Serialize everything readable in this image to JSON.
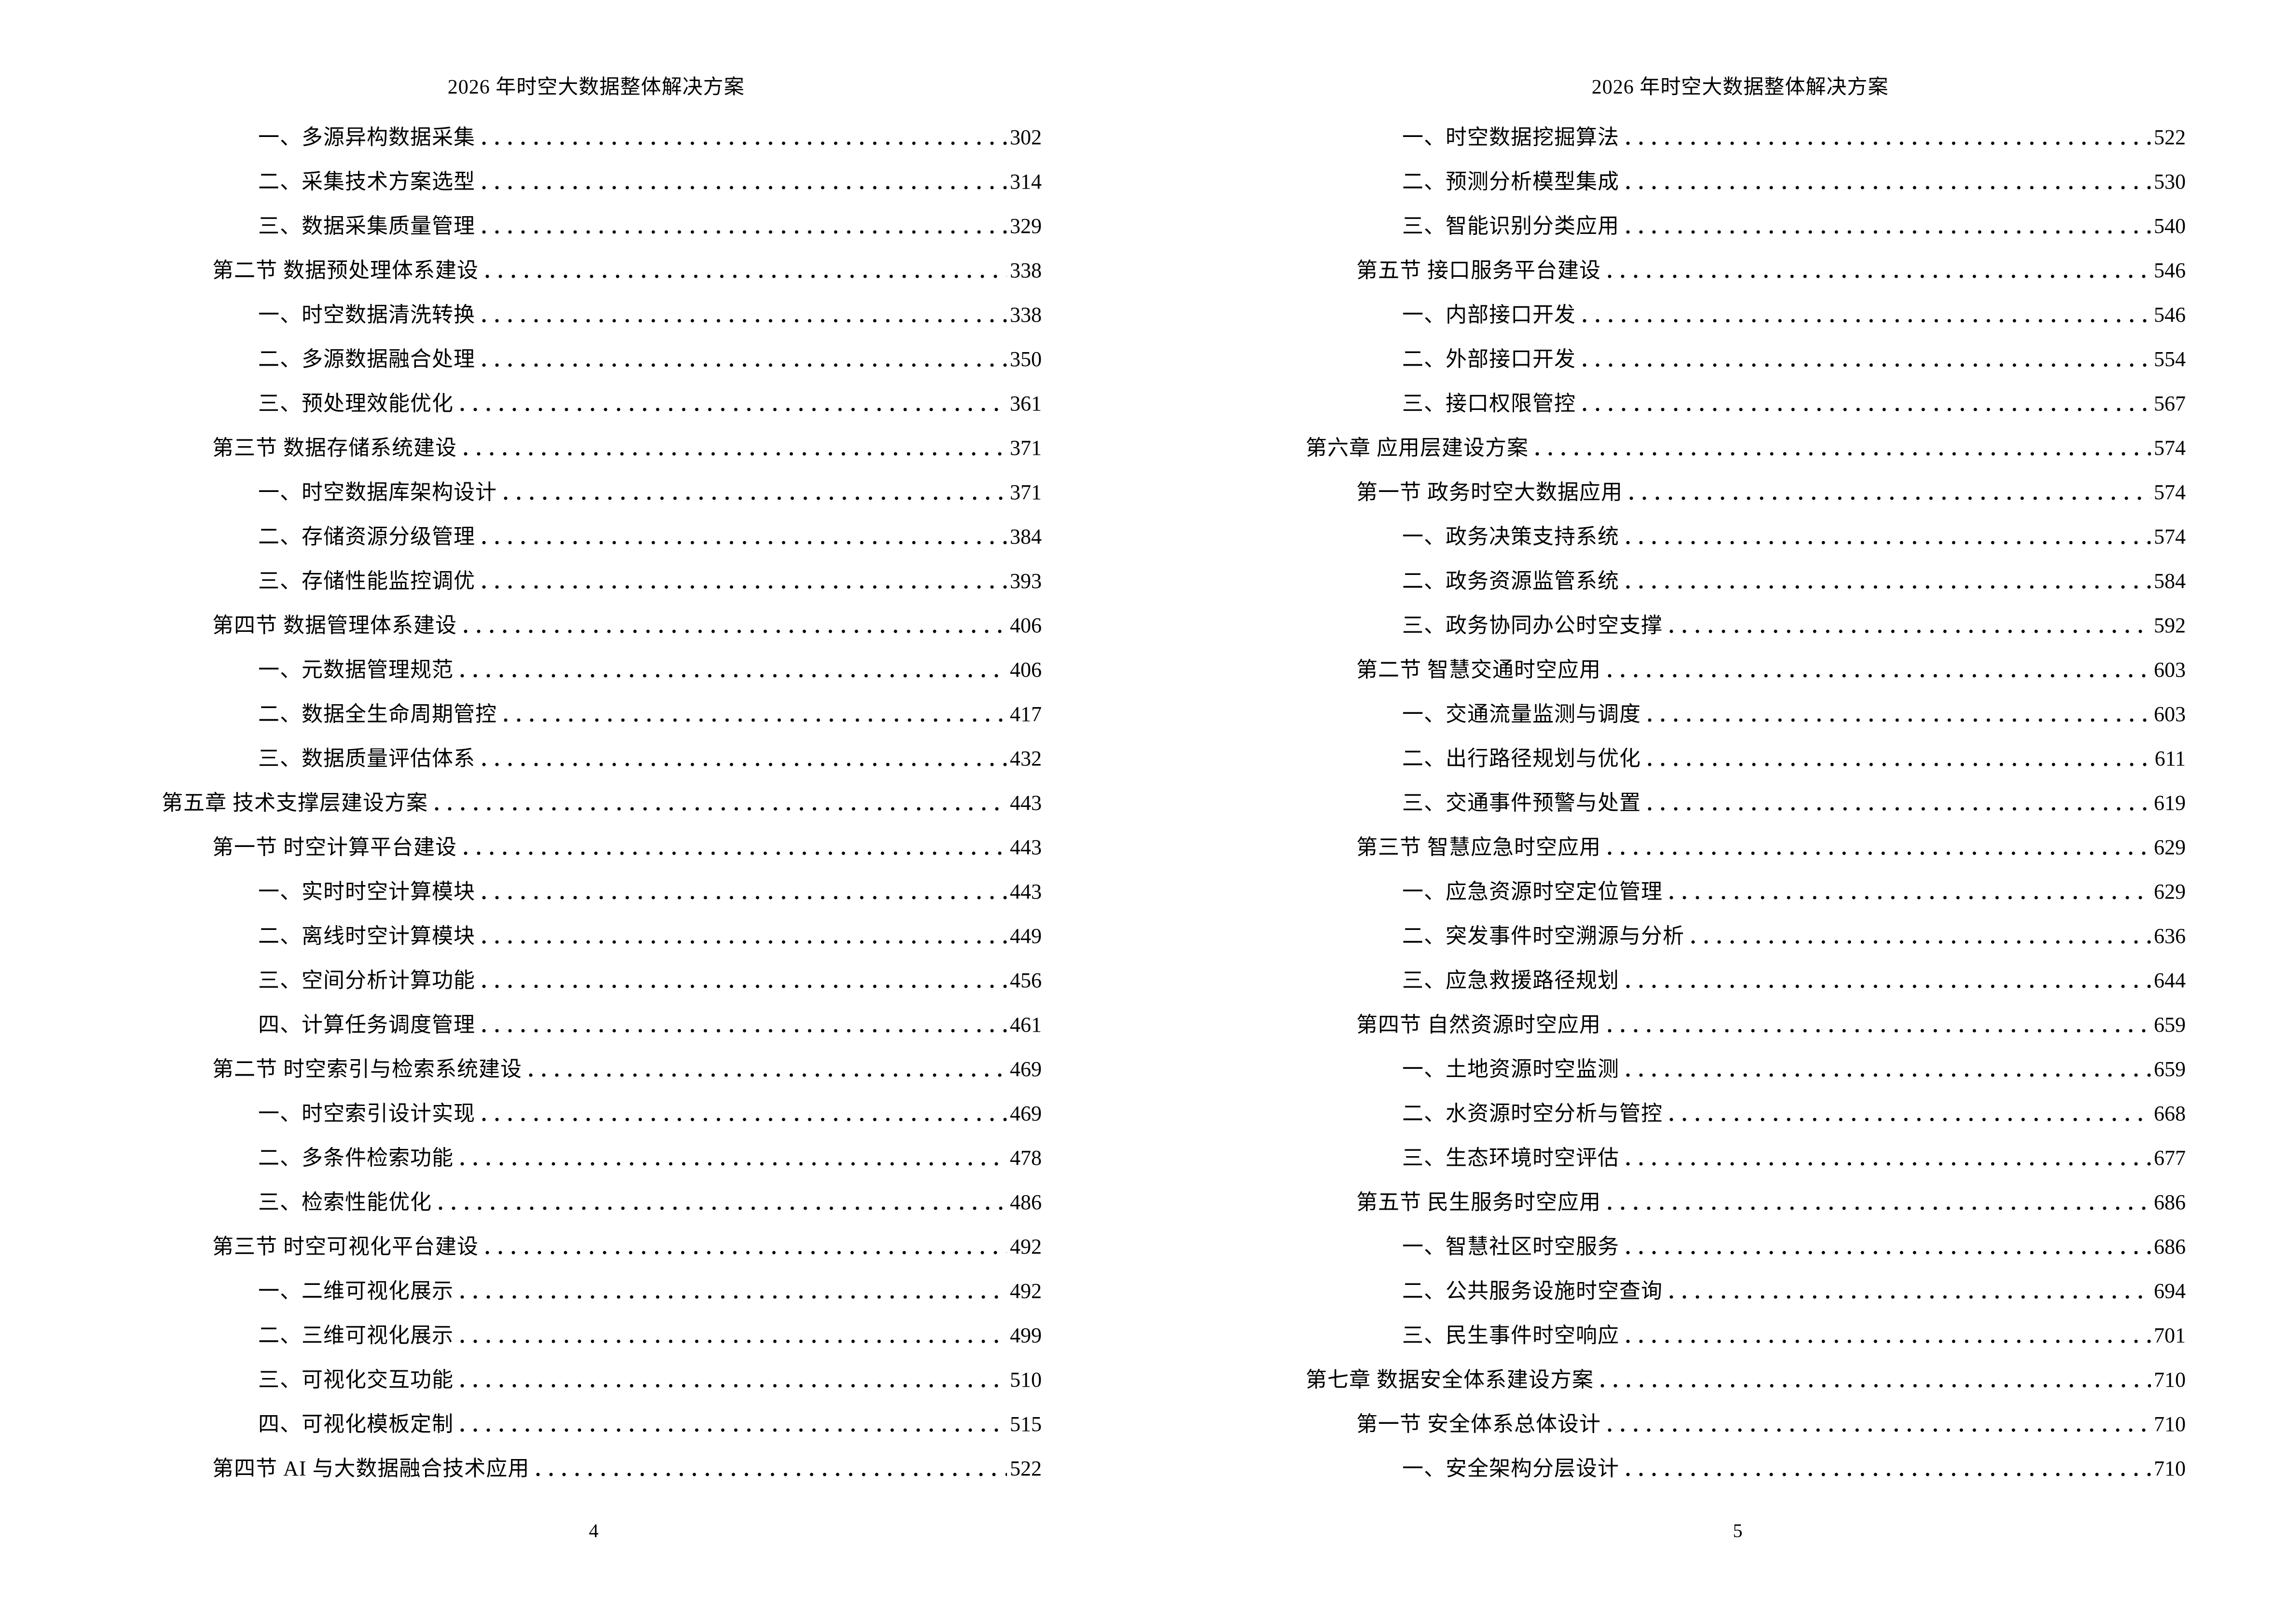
{
  "header": {
    "title": "2026 年时空大数据整体解决方案"
  },
  "pages": [
    {
      "number": "4",
      "entries": [
        {
          "level": 2,
          "text": "一、多源异构数据采集",
          "page": "302"
        },
        {
          "level": 2,
          "text": "二、采集技术方案选型",
          "page": "314"
        },
        {
          "level": 2,
          "text": "三、数据采集质量管理",
          "page": "329"
        },
        {
          "level": 1,
          "text": "第二节 数据预处理体系建设",
          "page": "338"
        },
        {
          "level": 2,
          "text": "一、时空数据清洗转换",
          "page": "338"
        },
        {
          "level": 2,
          "text": "二、多源数据融合处理",
          "page": "350"
        },
        {
          "level": 2,
          "text": "三、预处理效能优化",
          "page": "361"
        },
        {
          "level": 1,
          "text": "第三节 数据存储系统建设",
          "page": "371"
        },
        {
          "level": 2,
          "text": "一、时空数据库架构设计",
          "page": "371"
        },
        {
          "level": 2,
          "text": "二、存储资源分级管理",
          "page": "384"
        },
        {
          "level": 2,
          "text": "三、存储性能监控调优",
          "page": "393"
        },
        {
          "level": 1,
          "text": "第四节 数据管理体系建设",
          "page": "406"
        },
        {
          "level": 2,
          "text": "一、元数据管理规范",
          "page": "406"
        },
        {
          "level": 2,
          "text": "二、数据全生命周期管控",
          "page": "417"
        },
        {
          "level": 2,
          "text": "三、数据质量评估体系",
          "page": "432"
        },
        {
          "level": 0,
          "text": "第五章 技术支撑层建设方案",
          "page": "443"
        },
        {
          "level": 1,
          "text": "第一节 时空计算平台建设",
          "page": "443"
        },
        {
          "level": 2,
          "text": "一、实时时空计算模块",
          "page": "443"
        },
        {
          "level": 2,
          "text": "二、离线时空计算模块",
          "page": "449"
        },
        {
          "level": 2,
          "text": "三、空间分析计算功能",
          "page": "456"
        },
        {
          "level": 2,
          "text": "四、计算任务调度管理",
          "page": "461"
        },
        {
          "level": 1,
          "text": "第二节 时空索引与检索系统建设",
          "page": "469"
        },
        {
          "level": 2,
          "text": "一、时空索引设计实现",
          "page": "469"
        },
        {
          "level": 2,
          "text": "二、多条件检索功能",
          "page": "478"
        },
        {
          "level": 2,
          "text": "三、检索性能优化",
          "page": "486"
        },
        {
          "level": 1,
          "text": "第三节 时空可视化平台建设",
          "page": "492"
        },
        {
          "level": 2,
          "text": "一、二维可视化展示",
          "page": "492"
        },
        {
          "level": 2,
          "text": "二、三维可视化展示",
          "page": "499"
        },
        {
          "level": 2,
          "text": "三、可视化交互功能",
          "page": "510"
        },
        {
          "level": 2,
          "text": "四、可视化模板定制",
          "page": "515"
        },
        {
          "level": 1,
          "text": "第四节 AI 与大数据融合技术应用",
          "page": "522"
        }
      ]
    },
    {
      "number": "5",
      "entries": [
        {
          "level": 2,
          "text": "一、时空数据挖掘算法",
          "page": "522"
        },
        {
          "level": 2,
          "text": "二、预测分析模型集成",
          "page": "530"
        },
        {
          "level": 2,
          "text": "三、智能识别分类应用",
          "page": "540"
        },
        {
          "level": 1,
          "text": "第五节 接口服务平台建设",
          "page": "546"
        },
        {
          "level": 2,
          "text": "一、内部接口开发",
          "page": "546"
        },
        {
          "level": 2,
          "text": "二、外部接口开发",
          "page": "554"
        },
        {
          "level": 2,
          "text": "三、接口权限管控",
          "page": "567"
        },
        {
          "level": 0,
          "text": "第六章 应用层建设方案",
          "page": "574"
        },
        {
          "level": 1,
          "text": "第一节 政务时空大数据应用",
          "page": "574"
        },
        {
          "level": 2,
          "text": "一、政务决策支持系统",
          "page": "574"
        },
        {
          "level": 2,
          "text": "二、政务资源监管系统",
          "page": "584"
        },
        {
          "level": 2,
          "text": "三、政务协同办公时空支撑",
          "page": "592"
        },
        {
          "level": 1,
          "text": "第二节 智慧交通时空应用",
          "page": "603"
        },
        {
          "level": 2,
          "text": "一、交通流量监测与调度",
          "page": "603"
        },
        {
          "level": 2,
          "text": "二、出行路径规划与优化",
          "page": "611"
        },
        {
          "level": 2,
          "text": "三、交通事件预警与处置",
          "page": "619"
        },
        {
          "level": 1,
          "text": "第三节 智慧应急时空应用",
          "page": "629"
        },
        {
          "level": 2,
          "text": "一、应急资源时空定位管理",
          "page": "629"
        },
        {
          "level": 2,
          "text": "二、突发事件时空溯源与分析",
          "page": "636"
        },
        {
          "level": 2,
          "text": "三、应急救援路径规划",
          "page": "644"
        },
        {
          "level": 1,
          "text": "第四节 自然资源时空应用",
          "page": "659"
        },
        {
          "level": 2,
          "text": "一、土地资源时空监测",
          "page": "659"
        },
        {
          "level": 2,
          "text": "二、水资源时空分析与管控",
          "page": "668"
        },
        {
          "level": 2,
          "text": "三、生态环境时空评估",
          "page": "677"
        },
        {
          "level": 1,
          "text": "第五节 民生服务时空应用",
          "page": "686"
        },
        {
          "level": 2,
          "text": "一、智慧社区时空服务",
          "page": "686"
        },
        {
          "level": 2,
          "text": "二、公共服务设施时空查询",
          "page": "694"
        },
        {
          "level": 2,
          "text": "三、民生事件时空响应",
          "page": "701"
        },
        {
          "level": 0,
          "text": "第七章 数据安全体系建设方案",
          "page": "710"
        },
        {
          "level": 1,
          "text": "第一节 安全体系总体设计",
          "page": "710"
        },
        {
          "level": 2,
          "text": "一、安全架构分层设计",
          "page": "710"
        }
      ]
    }
  ]
}
